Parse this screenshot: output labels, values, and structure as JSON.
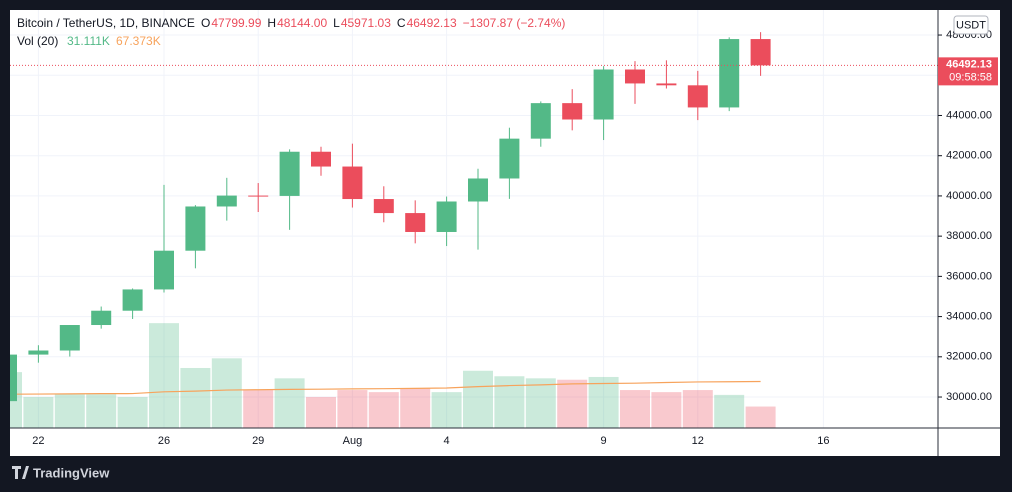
{
  "header": {
    "symbol": "Bitcoin / TetherUS, 1D, BINANCE",
    "ohlc": [
      {
        "key": "O",
        "text": "47799.99"
      },
      {
        "key": "H",
        "text": "48144.00"
      },
      {
        "key": "L",
        "text": "45971.03"
      },
      {
        "key": "C",
        "text": "46492.13"
      }
    ],
    "change": "−1307.87 (−2.74%)",
    "volume_indicator": "Vol (20)",
    "volume_text": "31.111K",
    "volume_ma_text": "67.373K",
    "currency": "USDT",
    "price_label": "46492.13",
    "countdown": "09:58:58"
  },
  "footer": {
    "brand": "TradingView"
  },
  "chart_data": [
    {
      "type": "candlestick",
      "up_color": "#53b987",
      "down_color": "#eb4d5c",
      "categories": [
        null,
        "22",
        null,
        null,
        null,
        "26",
        null,
        null,
        "29",
        null,
        null,
        "Aug",
        null,
        null,
        "4",
        null,
        null,
        null,
        null,
        "9",
        null,
        null,
        "12",
        null,
        null,
        null,
        "16"
      ],
      "open": [
        29796,
        32110,
        32313,
        33581,
        34292,
        35350,
        37276,
        39475,
        40017,
        40000,
        42197,
        41461,
        39845,
        39147,
        38207,
        39723,
        40867,
        42848,
        44614,
        43800,
        46286,
        45593,
        45500,
        44400,
        47799.99,
        null,
        null
      ],
      "high": [
        32200,
        32576,
        33580,
        34500,
        35400,
        40550,
        39542,
        40900,
        40640,
        42316,
        42448,
        42599,
        40480,
        39780,
        39969,
        41350,
        43392,
        44700,
        45310,
        46454,
        46700,
        46743,
        46218,
        47886,
        48144,
        null,
        null
      ],
      "low": [
        29750,
        31708,
        32013,
        33400,
        33881,
        35200,
        36400,
        38772,
        39200,
        38313,
        41000,
        39422,
        38690,
        37642,
        37508,
        37332,
        39853,
        42446,
        43261,
        42779,
        44580,
        45341,
        43770,
        44217,
        45971.03,
        null,
        null
      ],
      "close": [
        32110,
        32313,
        33581,
        34292,
        35350,
        37276,
        39475,
        40017,
        40000,
        42197,
        41461,
        39845,
        39147,
        38207,
        39723,
        40867,
        42848,
        44614,
        43800,
        46286,
        45593,
        45500,
        44400,
        47799.99,
        46492.13,
        null,
        null
      ],
      "last_price": 46492.13,
      "ylim": [
        28460,
        49245
      ],
      "yticks": [
        {
          "value": 30000,
          "label": "30000.00"
        },
        {
          "value": 32000,
          "label": "32000.00"
        },
        {
          "value": 34000,
          "label": "34000.00"
        },
        {
          "value": 36000,
          "label": "36000.00"
        },
        {
          "value": 38000,
          "label": "38000.00"
        },
        {
          "value": 40000,
          "label": "40000.00"
        },
        {
          "value": 42000,
          "label": "42000.00"
        },
        {
          "value": 44000,
          "label": "44000.00"
        },
        {
          "value": 46000,
          "label": "46000.00"
        },
        {
          "value": 48000,
          "label": "48000.00"
        }
      ],
      "grid": true
    },
    {
      "type": "volume",
      "up_color": "rgba(83,185,135,0.3)",
      "down_color": "rgba(235,77,92,0.3)",
      "ma_color": "#f7a35c",
      "values": [
        81000,
        45000,
        49000,
        49000,
        45000,
        152000,
        87000,
        101000,
        55000,
        72000,
        45000,
        55000,
        52000,
        58000,
        52000,
        83000,
        75000,
        72000,
        70000,
        74000,
        55000,
        52000,
        55000,
        48000,
        31111
      ],
      "ma": [
        49000,
        49200,
        49500,
        49800,
        49900,
        52500,
        53500,
        55000,
        55500,
        56000,
        56300,
        56700,
        57000,
        57500,
        58000,
        60000,
        61500,
        62500,
        64000,
        64500,
        65000,
        66000,
        66800,
        67000,
        67373
      ],
      "ylim": [
        0,
        606000
      ]
    }
  ]
}
